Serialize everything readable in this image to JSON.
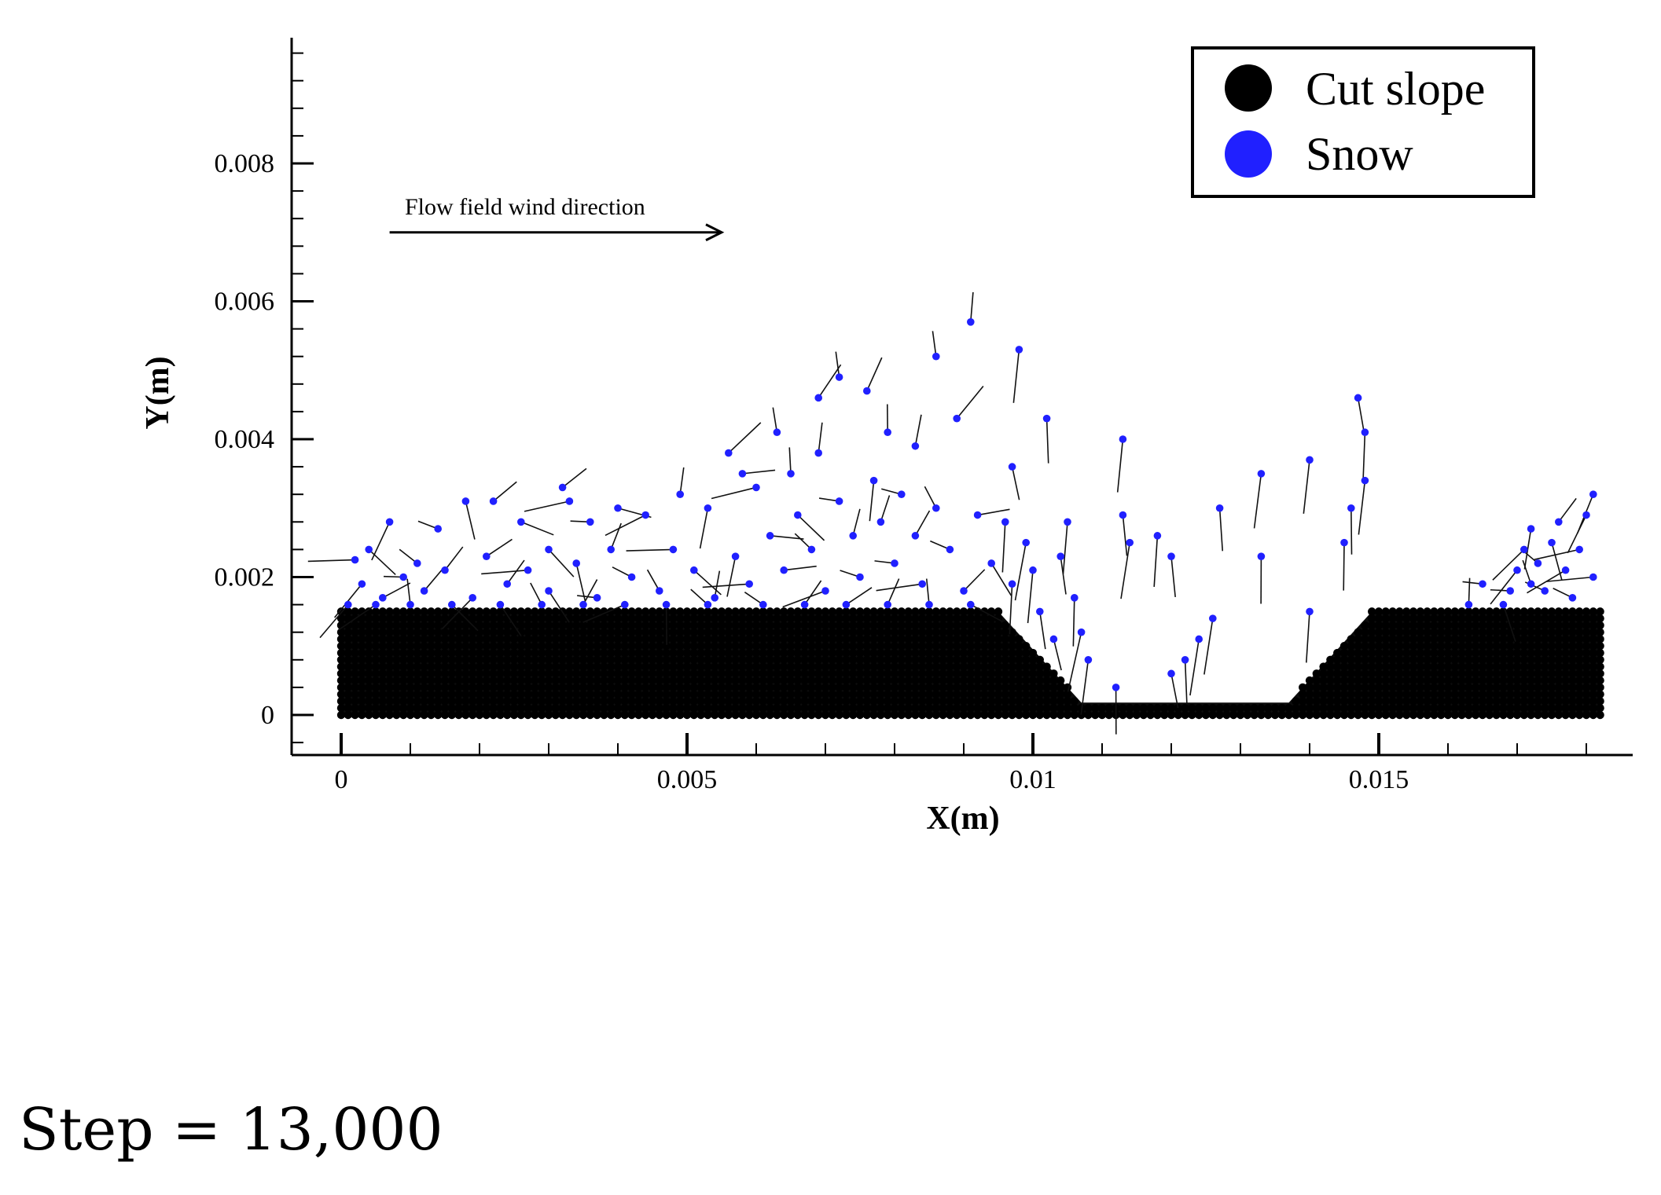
{
  "chart_data": {
    "type": "scatter",
    "title": "",
    "xlabel": "X(m)",
    "ylabel": "Y(m)",
    "xlim": [
      -0.0007,
      0.0188
    ],
    "ylim": [
      -0.0006,
      0.0098
    ],
    "x_ticks": [
      0,
      0.005,
      0.01,
      0.015
    ],
    "x_tick_labels": [
      "0",
      "0.005",
      "0.01",
      "0.015"
    ],
    "y_ticks": [
      0,
      0.002,
      0.004,
      0.006,
      0.008
    ],
    "y_tick_labels": [
      "0",
      "0.002",
      "0.004",
      "0.006",
      "0.008"
    ],
    "legend": {
      "position": "top-right",
      "entries": [
        {
          "label": "Cut slope",
          "color": "#000000"
        },
        {
          "label": "Snow",
          "color": "#2020ff"
        }
      ]
    },
    "annotation": {
      "text": "Flow field wind direction",
      "arrow_from": [
        0.0007,
        0.007
      ],
      "arrow_to": [
        0.0055,
        0.007
      ]
    },
    "cut_slope": {
      "profile": [
        [
          0,
          0.0015
        ],
        [
          0.0095,
          0.0015
        ],
        [
          0.0107,
          0.00018
        ],
        [
          0.0137,
          0.00018
        ],
        [
          0.0149,
          0.0015
        ],
        [
          0.0182,
          0.0015
        ]
      ],
      "base_y": 0,
      "particle_spacing": 0.0001
    },
    "snow_series": [
      {
        "name": "Snow",
        "points": [
          [
            0.0002,
            0.00225
          ],
          [
            0.0004,
            0.0024
          ],
          [
            0.0007,
            0.0028
          ],
          [
            0.0011,
            0.0022
          ],
          [
            0.0014,
            0.0027
          ],
          [
            0.0018,
            0.0031
          ],
          [
            0.0022,
            0.0031
          ],
          [
            0.0026,
            0.0028
          ],
          [
            0.003,
            0.0024
          ],
          [
            0.0032,
            0.0033
          ],
          [
            0.0033,
            0.0031
          ],
          [
            0.0036,
            0.0028
          ],
          [
            0.004,
            0.003
          ],
          [
            0.0044,
            0.0029
          ],
          [
            0.0049,
            0.0032
          ],
          [
            0.0053,
            0.003
          ],
          [
            0.0056,
            0.0038
          ],
          [
            0.0058,
            0.0035
          ],
          [
            0.006,
            0.0033
          ],
          [
            0.0063,
            0.0041
          ],
          [
            0.0065,
            0.0035
          ],
          [
            0.0069,
            0.0046
          ],
          [
            0.0072,
            0.0049
          ],
          [
            0.0076,
            0.0047
          ],
          [
            0.0069,
            0.0038
          ],
          [
            0.0079,
            0.0041
          ],
          [
            0.0083,
            0.0039
          ],
          [
            0.0086,
            0.0052
          ],
          [
            0.0091,
            0.0057
          ],
          [
            0.0098,
            0.0053
          ],
          [
            0.0089,
            0.0043
          ],
          [
            0.0097,
            0.0036
          ],
          [
            0.0102,
            0.0043
          ],
          [
            0.0113,
            0.004
          ],
          [
            0.0113,
            0.0029
          ],
          [
            0.0114,
            0.0025
          ],
          [
            0.0118,
            0.0026
          ],
          [
            0.012,
            0.0023
          ],
          [
            0.0127,
            0.003
          ],
          [
            0.0133,
            0.0035
          ],
          [
            0.0133,
            0.0023
          ],
          [
            0.014,
            0.0037
          ],
          [
            0.0147,
            0.0046
          ],
          [
            0.0148,
            0.0041
          ],
          [
            0.0148,
            0.0034
          ],
          [
            0.0146,
            0.003
          ],
          [
            0.0145,
            0.0025
          ],
          [
            0.0126,
            0.0014
          ],
          [
            0.0124,
            0.0011
          ],
          [
            0.0122,
            0.0008
          ],
          [
            0.012,
            0.0006
          ],
          [
            0.0112,
            0.0004
          ],
          [
            0.014,
            0.0015
          ],
          [
            0.0003,
            0.0019
          ],
          [
            0.0006,
            0.0017
          ],
          [
            0.0009,
            0.002
          ],
          [
            0.0012,
            0.0018
          ],
          [
            0.0015,
            0.0021
          ],
          [
            0.0019,
            0.0017
          ],
          [
            0.0021,
            0.0023
          ],
          [
            0.0024,
            0.0019
          ],
          [
            0.0027,
            0.0021
          ],
          [
            0.003,
            0.0018
          ],
          [
            0.0034,
            0.0022
          ],
          [
            0.0037,
            0.0017
          ],
          [
            0.0039,
            0.0024
          ],
          [
            0.0042,
            0.002
          ],
          [
            0.0046,
            0.0018
          ],
          [
            0.0048,
            0.0024
          ],
          [
            0.0051,
            0.0021
          ],
          [
            0.0054,
            0.0017
          ],
          [
            0.0057,
            0.0023
          ],
          [
            0.0059,
            0.0019
          ],
          [
            0.0062,
            0.0026
          ],
          [
            0.0064,
            0.0021
          ],
          [
            0.0066,
            0.0029
          ],
          [
            0.0068,
            0.0024
          ],
          [
            0.007,
            0.0018
          ],
          [
            0.0072,
            0.0031
          ],
          [
            0.0074,
            0.0026
          ],
          [
            0.0075,
            0.002
          ],
          [
            0.0077,
            0.0034
          ],
          [
            0.0078,
            0.0028
          ],
          [
            0.008,
            0.0022
          ],
          [
            0.0081,
            0.0032
          ],
          [
            0.0083,
            0.0026
          ],
          [
            0.0084,
            0.0019
          ],
          [
            0.0086,
            0.003
          ],
          [
            0.0088,
            0.0024
          ],
          [
            0.009,
            0.0018
          ],
          [
            0.0092,
            0.0029
          ],
          [
            0.0094,
            0.0022
          ],
          [
            0.0096,
            0.0028
          ],
          [
            0.0097,
            0.0019
          ],
          [
            0.0099,
            0.0025
          ],
          [
            0.01,
            0.0021
          ],
          [
            0.0101,
            0.0015
          ],
          [
            0.0103,
            0.0011
          ],
          [
            0.0104,
            0.0023
          ],
          [
            0.0106,
            0.0017
          ],
          [
            0.0107,
            0.0012
          ],
          [
            0.0108,
            0.0008
          ],
          [
            0.0105,
            0.0028
          ],
          [
            0.0001,
            0.0016
          ],
          [
            0.0005,
            0.0016
          ],
          [
            0.001,
            0.0016
          ],
          [
            0.0016,
            0.0016
          ],
          [
            0.0023,
            0.0016
          ],
          [
            0.0029,
            0.0016
          ],
          [
            0.0035,
            0.0016
          ],
          [
            0.0041,
            0.0016
          ],
          [
            0.0047,
            0.0016
          ],
          [
            0.0053,
            0.0016
          ],
          [
            0.0061,
            0.0016
          ],
          [
            0.0067,
            0.0016
          ],
          [
            0.0073,
            0.0016
          ],
          [
            0.0079,
            0.0016
          ],
          [
            0.0085,
            0.0016
          ],
          [
            0.0091,
            0.0016
          ],
          [
            0.0163,
            0.0016
          ],
          [
            0.0165,
            0.0019
          ],
          [
            0.0168,
            0.0016
          ],
          [
            0.017,
            0.0021
          ],
          [
            0.0171,
            0.0024
          ],
          [
            0.0172,
            0.0027
          ],
          [
            0.0173,
            0.0022
          ],
          [
            0.0174,
            0.0018
          ],
          [
            0.0175,
            0.0025
          ],
          [
            0.0176,
            0.0028
          ],
          [
            0.0177,
            0.0021
          ],
          [
            0.0178,
            0.0017
          ],
          [
            0.0179,
            0.0024
          ],
          [
            0.018,
            0.0029
          ],
          [
            0.0181,
            0.0032
          ],
          [
            0.0181,
            0.002
          ],
          [
            0.0172,
            0.0019
          ],
          [
            0.0169,
            0.0018
          ]
        ]
      }
    ],
    "velocity_vectors": true
  },
  "step_label": "Step = 13,000"
}
